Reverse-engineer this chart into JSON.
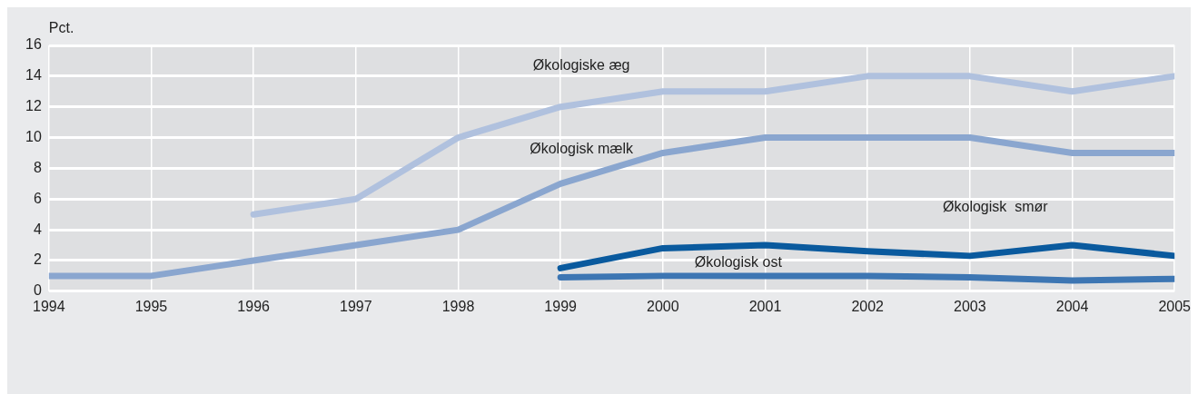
{
  "chart_data": {
    "type": "line",
    "ylabel": "Pct.",
    "x": [
      1994,
      1995,
      1996,
      1997,
      1998,
      1999,
      2000,
      2001,
      2002,
      2003,
      2004,
      2005
    ],
    "series": [
      {
        "name": "Økologiske æg",
        "color": "#b0c1de",
        "values": [
          null,
          null,
          5,
          6,
          10,
          12,
          13,
          13,
          14,
          14,
          13,
          14
        ]
      },
      {
        "name": "Økologisk mælk",
        "color": "#8aa6cf",
        "values": [
          1,
          1,
          2,
          3,
          4,
          7,
          9,
          10,
          10,
          10,
          9,
          9
        ]
      },
      {
        "name": "Økologisk  smør",
        "color": "#0a5a9e",
        "values": [
          null,
          null,
          null,
          null,
          null,
          1.5,
          2.8,
          3,
          2.6,
          2.3,
          3,
          2.3
        ]
      },
      {
        "name": "Økologisk ost",
        "color": "#3d76b3",
        "values": [
          null,
          null,
          null,
          null,
          null,
          0.9,
          1,
          1,
          1,
          0.9,
          0.7,
          0.8
        ]
      }
    ],
    "xlim": [
      1994,
      2005
    ],
    "xticks": [
      1994,
      1995,
      1996,
      1997,
      1998,
      1999,
      2000,
      2001,
      2002,
      2003,
      2004,
      2005
    ],
    "ylim": [
      0,
      16
    ],
    "yticks": [
      0,
      2,
      4,
      6,
      8,
      10,
      12,
      14,
      16
    ],
    "grid": true,
    "legend": false,
    "marker": "none",
    "line_style": "solid"
  }
}
